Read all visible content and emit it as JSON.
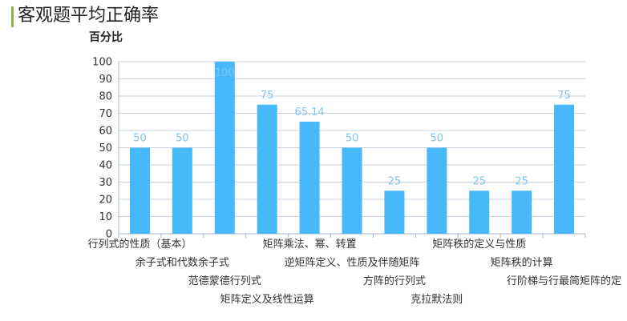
{
  "title": "客观题平均正确率",
  "chart_data": {
    "type": "bar",
    "ylabel": "百分比",
    "xlabel": "",
    "ylim": [
      0,
      100
    ],
    "yticks": [
      0,
      10,
      20,
      30,
      40,
      50,
      60,
      70,
      80,
      90,
      100
    ],
    "grid": true,
    "legend": "none",
    "colors": {
      "bar": "#47b9fb",
      "grid": "#c9d3e0",
      "axis": "#a8b6c8",
      "data_label": "#7fc6f2"
    },
    "categories": [
      "行列式的性质（基本）",
      "余子式和代数余子式",
      "范德蒙德行列式",
      "矩阵定义及线性运算",
      "矩阵乘法、幂、转置",
      "逆矩阵定义、性质及伴随矩阵",
      "方阵的行列式",
      "克拉默法则",
      "矩阵秩的定义与性质",
      "矩阵秩的计算",
      "行阶梯与行最简矩阵的定"
    ],
    "values": [
      50,
      50,
      100,
      75,
      65.14,
      50,
      25,
      50,
      25,
      25,
      75
    ],
    "value_labels": [
      "50",
      "50",
      "100",
      "75",
      "65.14",
      "50",
      "25",
      "50",
      "25",
      "25",
      "75"
    ]
  }
}
